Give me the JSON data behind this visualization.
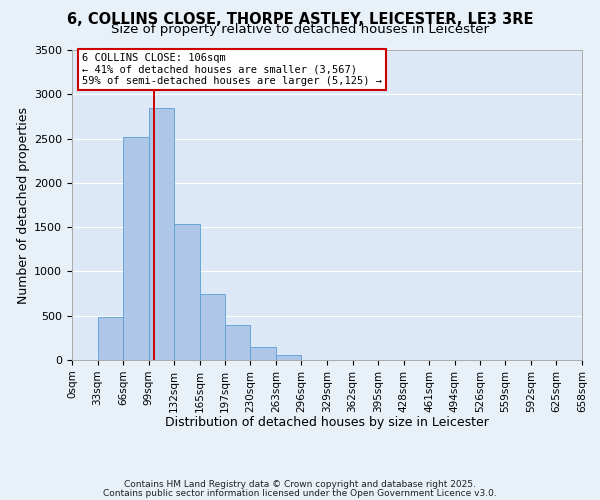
{
  "title1": "6, COLLINS CLOSE, THORPE ASTLEY, LEICESTER, LE3 3RE",
  "title2": "Size of property relative to detached houses in Leicester",
  "xlabel": "Distribution of detached houses by size in Leicester",
  "ylabel": "Number of detached properties",
  "bar_edges": [
    0,
    33,
    66,
    99,
    132,
    165,
    197,
    230,
    263,
    296,
    329,
    362,
    395,
    428,
    461,
    494,
    526,
    559,
    592,
    625,
    658
  ],
  "bar_heights": [
    0,
    480,
    2520,
    2840,
    1530,
    740,
    390,
    145,
    60,
    0,
    0,
    0,
    0,
    0,
    0,
    0,
    0,
    0,
    0,
    0
  ],
  "bar_color": "#aec6e8",
  "bar_edgecolor": "#5a9fd4",
  "vline_x": 106,
  "vline_color": "#cc0000",
  "ylim": [
    0,
    3500
  ],
  "yticks": [
    0,
    500,
    1000,
    1500,
    2000,
    2500,
    3000,
    3500
  ],
  "xtick_labels": [
    "0sqm",
    "33sqm",
    "66sqm",
    "99sqm",
    "132sqm",
    "165sqm",
    "197sqm",
    "230sqm",
    "263sqm",
    "296sqm",
    "329sqm",
    "362sqm",
    "395sqm",
    "428sqm",
    "461sqm",
    "494sqm",
    "526sqm",
    "559sqm",
    "592sqm",
    "625sqm",
    "658sqm"
  ],
  "annotation_title": "6 COLLINS CLOSE: 106sqm",
  "annotation_line1": "← 41% of detached houses are smaller (3,567)",
  "annotation_line2": "59% of semi-detached houses are larger (5,125) →",
  "annotation_box_edgecolor": "#cc0000",
  "footnote1": "Contains HM Land Registry data © Crown copyright and database right 2025.",
  "footnote2": "Contains public sector information licensed under the Open Government Licence v3.0.",
  "bg_color": "#e8f0f8",
  "plot_bg_color": "#dce8f5",
  "grid_color": "#ffffff",
  "title1_fontsize": 10.5,
  "title2_fontsize": 9.5
}
